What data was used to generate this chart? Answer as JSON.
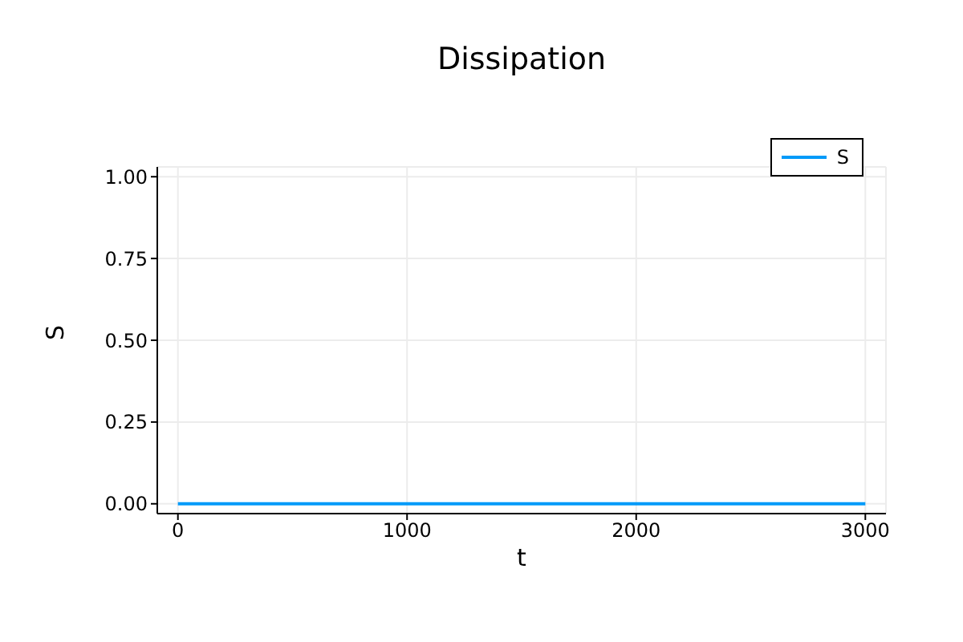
{
  "chart_data": {
    "type": "line",
    "title": "Dissipation",
    "xlabel": "t",
    "ylabel": "S",
    "x": [
      0,
      3000
    ],
    "series": [
      {
        "name": "S",
        "color": "#009af9",
        "values": [
          0,
          0
        ]
      }
    ],
    "xlim": [
      -90,
      3090
    ],
    "xticks": [
      0,
      1000,
      2000,
      3000
    ],
    "ylim": [
      -0.03,
      1.03
    ],
    "yticks": [
      {
        "value": 0,
        "label": "0.00"
      },
      {
        "value": 0.25,
        "label": "0.25"
      },
      {
        "value": 0.5,
        "label": "0.50"
      },
      {
        "value": 0.75,
        "label": "0.75"
      },
      {
        "value": 1,
        "label": "1.00"
      }
    ],
    "grid": true,
    "legend": "top right",
    "marker": "none",
    "line_style": "solid"
  }
}
